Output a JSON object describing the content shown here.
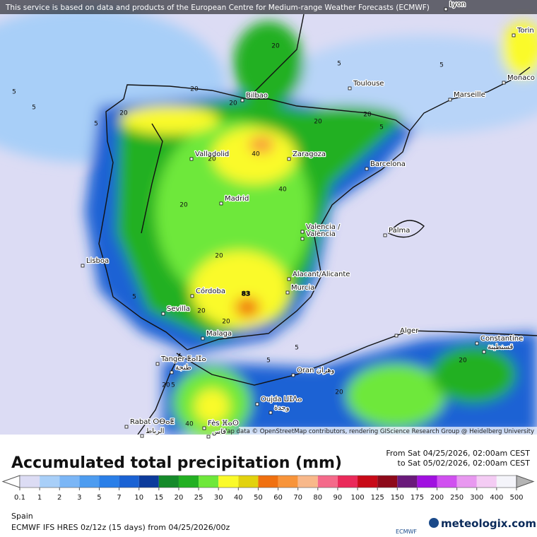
{
  "attribution_top": "This service is based on data and products of the European Centre for Medium-range Weather Forecasts (ECMWF)",
  "map_credit": "Map data © OpenStreetMap contributors, rendering GIScience Research Group @ Heidelberg University",
  "cities": [
    "Lyon",
    "Torin",
    "Monaco",
    "Toulouse",
    "Marseille",
    "Bilbao",
    "Valladolid",
    "Zaragoza",
    "Barcelona",
    "Madrid",
    "Valencia /",
    "València",
    "Palma",
    "Lisboa",
    "Alacant/Alicante",
    "Murcia",
    "Córdoba",
    "Sevilla",
    "Alger",
    "Constantine",
    "قسنطينة",
    "Malaga",
    "Tanger ⵟⴰⵏⵊⴰ",
    "طنجة",
    "Oran وهران",
    "Oujda ⵡⵊⴷⴰ",
    "وجدة",
    "Rabat ⵔⴱⴰⵟ",
    "الرباط",
    "Fès ⴼⴰⵙ",
    "فاس"
  ],
  "contour_labels": [
    5,
    20,
    5,
    5,
    20,
    20,
    40,
    40,
    20,
    20,
    20,
    20,
    5,
    83,
    20,
    20,
    20,
    5,
    5,
    20,
    20,
    5,
    5,
    20,
    40,
    20,
    5,
    5
  ],
  "title": "Accumulated total precipitation (mm)",
  "period_from": "From Sat 04/25/2026, 02:00am CEST",
  "period_to": "to Sat 05/02/2026, 02:00am CEST",
  "legend": {
    "ticks": [
      0.1,
      1,
      2,
      3,
      5,
      7,
      10,
      15,
      20,
      25,
      30,
      40,
      50,
      60,
      70,
      80,
      90,
      100,
      125,
      150,
      175,
      200,
      250,
      300,
      400,
      500
    ],
    "colors": [
      "#dcdcf4",
      "#a8cff8",
      "#7bb6f6",
      "#4d9cf0",
      "#2a7fe8",
      "#1a62d4",
      "#0c3b9c",
      "#158a2a",
      "#22b022",
      "#6ee83a",
      "#fafa2a",
      "#e2d20e",
      "#f07010",
      "#f8943a",
      "#f8b88a",
      "#f46a8a",
      "#ea2a5a",
      "#c80a18",
      "#8e0a1a",
      "#6a1a7a",
      "#a010e0",
      "#d050f0",
      "#e898f0",
      "#f4ccf4",
      "#f4f4fa"
    ]
  },
  "region": "Spain",
  "model": "ECMWF IFS HRES 0z/12z (15 days) from  04/25/2026/00z",
  "logos": [
    "ECMWF",
    "meteologix.com"
  ]
}
